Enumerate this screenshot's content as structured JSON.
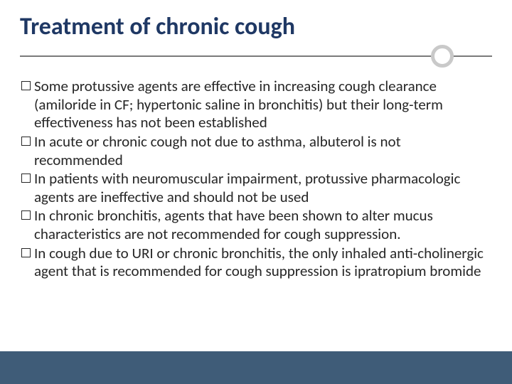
{
  "slide": {
    "title": "Treatment of chronic cough",
    "title_color": "#1f3864",
    "title_fontsize": 34,
    "rule_color": "#7a7a7a",
    "circle_border_color": "#c9c9c9",
    "bottom_bar_color": "#3f5c78",
    "body_text_color": "#262626",
    "body_fontsize": 21,
    "bullets": [
      "Some protussive agents are effective in increasing cough clearance (amiloride in CF; hypertonic saline in bronchitis) but their long-term effectiveness has not been established",
      "In acute or chronic cough not due to asthma, albuterol is not recommended",
      "In patients with neuromuscular impairment, protussive pharmacologic agents are ineffective and should not be  used",
      "In chronic bronchitis, agents that have been shown to alter mucus characteristics are not recommended for cough suppression.",
      "In cough due to URI or chronic bronchitis, the only inhaled anti-cholinergic agent that is recommended for cough suppression is ipratropium bromide"
    ]
  }
}
